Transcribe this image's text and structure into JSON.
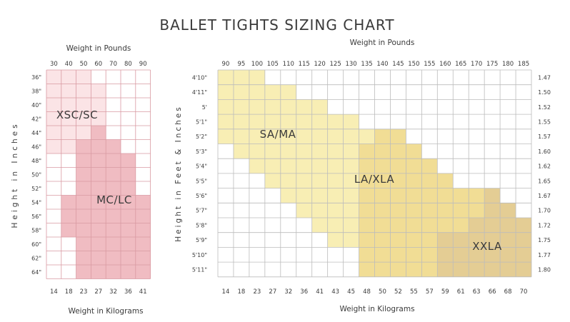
{
  "title": "BALLET TIGHTS SIZING CHART",
  "colors": {
    "xsc": "#fbe4e6",
    "mc": "#f0bcc2",
    "sa": "#f8eeb4",
    "la": "#f1dd95",
    "xxla": "#e4cd94",
    "left_grid": "#d99aa2",
    "right_grid": "#bcbcbc"
  },
  "chart_data": [
    {
      "type": "heatmap",
      "name_key": "child",
      "top_xlabel": "Weight in Pounds",
      "bottom_xlabel": "Weight in Kilograms",
      "ylabel": "Height in Inches",
      "x_lbs": [
        "30",
        "40",
        "50",
        "60",
        "70",
        "80",
        "90"
      ],
      "x_kg": [
        "14",
        "18",
        "23",
        "27",
        "32",
        "36",
        "41"
      ],
      "y_labels": [
        "36\"",
        "38\"",
        "40\"",
        "42\"",
        "44\"",
        "46\"",
        "48\"",
        "50\"",
        "52\"",
        "54\"",
        "56\"",
        "58\"",
        "60\"",
        "62\"",
        "64\""
      ],
      "sizes": [
        {
          "label": "XSC/SC",
          "color_key": "xsc",
          "cells": [
            [
              0,
              0,
              2
            ],
            [
              1,
              0,
              3
            ],
            [
              2,
              0,
              3
            ],
            [
              3,
              0,
              3
            ],
            [
              4,
              0,
              3
            ],
            [
              5,
              0,
              1
            ]
          ]
        },
        {
          "label": "MC/LC",
          "color_key": "mc",
          "cells": [
            [
              4,
              3,
              3
            ],
            [
              5,
              2,
              4
            ],
            [
              6,
              2,
              5
            ],
            [
              7,
              2,
              5
            ],
            [
              8,
              2,
              5
            ],
            [
              9,
              1,
              6
            ],
            [
              10,
              1,
              6
            ],
            [
              11,
              1,
              6
            ],
            [
              12,
              2,
              6
            ],
            [
              13,
              2,
              6
            ],
            [
              14,
              2,
              6
            ]
          ]
        }
      ]
    },
    {
      "type": "heatmap",
      "name_key": "adult",
      "top_xlabel": "Weight in Pounds",
      "bottom_xlabel": "Weight in Kilograms",
      "ylabel": "Height in Feet & Inches",
      "x_lbs": [
        "90",
        "95",
        "100",
        "105",
        "110",
        "115",
        "120",
        "125",
        "130",
        "135",
        "140",
        "145",
        "150",
        "155",
        "160",
        "165",
        "170",
        "175",
        "180",
        "185"
      ],
      "x_kg": [
        "14",
        "18",
        "23",
        "27",
        "32",
        "36",
        "41",
        "43",
        "45",
        "48",
        "50",
        "52",
        "55",
        "57",
        "59",
        "61",
        "63",
        "66",
        "68",
        "70"
      ],
      "y_labels": [
        "4'10\"",
        "4'11\"",
        "5'",
        "5'1\"",
        "5'2\"",
        "5'3\"",
        "5'4\"",
        "5'5\"",
        "5'6\"",
        "5'7\"",
        "5'8\"",
        "5'9\"",
        "5'10\"",
        "5'11\""
      ],
      "y_right": [
        "1.47",
        "1.50",
        "1.52",
        "1.55",
        "1.57",
        "1.60",
        "1.62",
        "1.65",
        "1.67",
        "1.70",
        "1.72",
        "1.75",
        "1.77",
        "1.80"
      ],
      "sizes": [
        {
          "label": "SA/MA",
          "color_key": "sa",
          "cells": [
            [
              0,
              0,
              2
            ],
            [
              1,
              0,
              4
            ],
            [
              2,
              0,
              6
            ],
            [
              3,
              0,
              8
            ],
            [
              4,
              0,
              9
            ],
            [
              5,
              1,
              8
            ],
            [
              6,
              2,
              8
            ],
            [
              7,
              3,
              8
            ],
            [
              8,
              4,
              8
            ],
            [
              9,
              5,
              8
            ],
            [
              10,
              6,
              8
            ],
            [
              11,
              7,
              8
            ]
          ]
        },
        {
          "label": "LA/XLA",
          "color_key": "la",
          "cells": [
            [
              4,
              10,
              11
            ],
            [
              5,
              9,
              12
            ],
            [
              6,
              9,
              13
            ],
            [
              7,
              9,
              14
            ],
            [
              8,
              9,
              16
            ],
            [
              9,
              9,
              16
            ],
            [
              10,
              9,
              16
            ],
            [
              11,
              9,
              13
            ],
            [
              12,
              9,
              13
            ],
            [
              13,
              9,
              13
            ]
          ]
        },
        {
          "label": "XXLA",
          "color_key": "xxla",
          "cells": [
            [
              8,
              17,
              17
            ],
            [
              9,
              17,
              18
            ],
            [
              10,
              16,
              19
            ],
            [
              11,
              14,
              19
            ],
            [
              12,
              14,
              19
            ],
            [
              13,
              14,
              19
            ]
          ]
        }
      ]
    }
  ]
}
